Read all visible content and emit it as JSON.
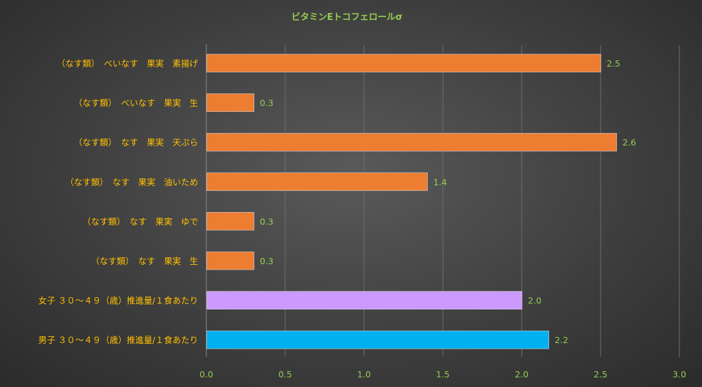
{
  "chart_data": {
    "type": "bar",
    "orientation": "horizontal",
    "title": "ビタミンEトコフェロールσ",
    "xlabel": "",
    "ylabel": "",
    "xlim": [
      0,
      3.0
    ],
    "ticks": [
      "0.0",
      "0.5",
      "1.0",
      "1.5",
      "2.0",
      "2.5",
      "3.0"
    ],
    "grid": true,
    "bars": [
      {
        "label": "（なす類）　べいなす　果実　素揚げ",
        "value": 2.5,
        "value_label": "2.5",
        "color": "#ed7d31"
      },
      {
        "label": "（なす類）　べいなす　果実　生",
        "value": 0.3,
        "value_label": "0.3",
        "color": "#ed7d31"
      },
      {
        "label": "（なす類）　なす　果実　天ぷら",
        "value": 2.6,
        "value_label": "2.6",
        "color": "#ed7d31"
      },
      {
        "label": "（なす類）　なす　果実　油いため",
        "value": 1.4,
        "value_label": "1.4",
        "color": "#ed7d31"
      },
      {
        "label": "（なす類）　なす　果実　ゆで",
        "value": 0.3,
        "value_label": "0.3",
        "color": "#ed7d31"
      },
      {
        "label": "（なす類）　なす　果実　生",
        "value": 0.3,
        "value_label": "0.3",
        "color": "#ed7d31"
      },
      {
        "label": "女子 ３０～４９（歳）推進量/１食あたり",
        "value": 2.0,
        "value_label": "2.0",
        "color": "#cc99ff"
      },
      {
        "label": "男子 ３０～４９（歳）推進量/１食あたり",
        "value": 2.17,
        "value_label": "2.2",
        "color": "#00b0f0"
      }
    ]
  }
}
